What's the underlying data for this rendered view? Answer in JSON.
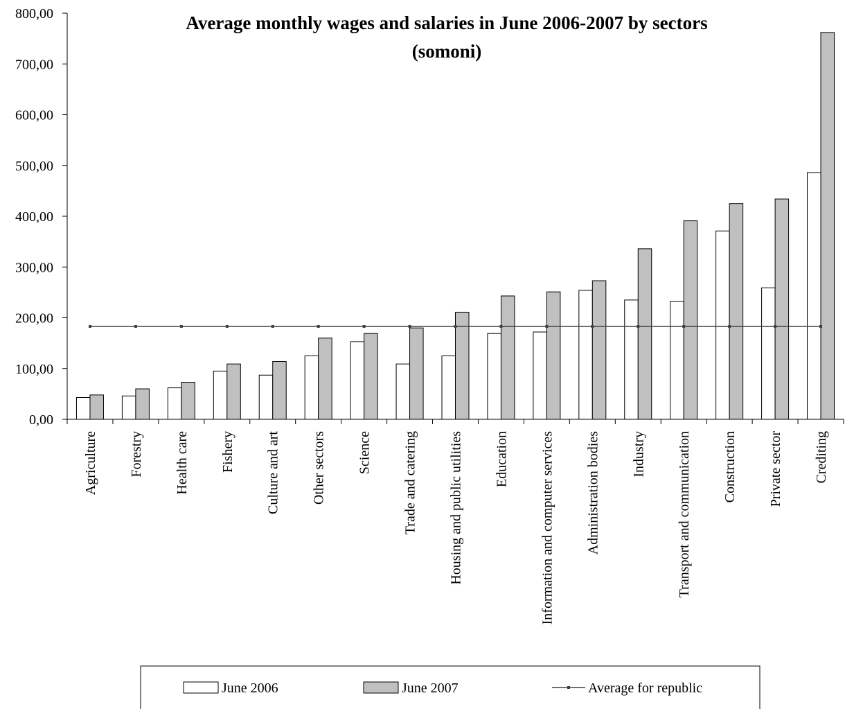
{
  "chart_data": {
    "type": "bar",
    "title": "Average monthly wages and salaries in June 2006-2007 by sectors",
    "subtitle": "(somoni)",
    "categories": [
      "Agriculture",
      "Forestry",
      "Health care",
      "Fishery",
      "Culture and art",
      "Other sectors",
      "Science",
      "Trade and catering",
      "Housing and public utilities",
      "Education",
      "Information and computer services",
      "Administration bodies",
      "Industry",
      "Transport and communication",
      "Construction",
      "Private sector",
      "Crediting"
    ],
    "series": [
      {
        "name": "June 2006",
        "type": "bar",
        "color": "#ffffff",
        "values": [
          43,
          46,
          62,
          95,
          87,
          125,
          153,
          109,
          125,
          169,
          172,
          254,
          235,
          232,
          371,
          259,
          486
        ]
      },
      {
        "name": "June 2007",
        "type": "bar",
        "color": "#c0c0c0",
        "values": [
          48,
          60,
          73,
          109,
          114,
          160,
          169,
          180,
          211,
          243,
          251,
          273,
          336,
          391,
          425,
          434,
          762
        ]
      },
      {
        "name": "Average for republic",
        "type": "line",
        "color": "#404040",
        "values": [
          183,
          183,
          183,
          183,
          183,
          183,
          183,
          183,
          183,
          183,
          183,
          183,
          183,
          183,
          183,
          183,
          183
        ]
      }
    ],
    "ylim": [
      0,
      800
    ],
    "yticks": [
      "0,00",
      "100,00",
      "200,00",
      "300,00",
      "400,00",
      "500,00",
      "600,00",
      "700,00",
      "800,00"
    ],
    "grid": false,
    "legend_position": "bottom"
  }
}
